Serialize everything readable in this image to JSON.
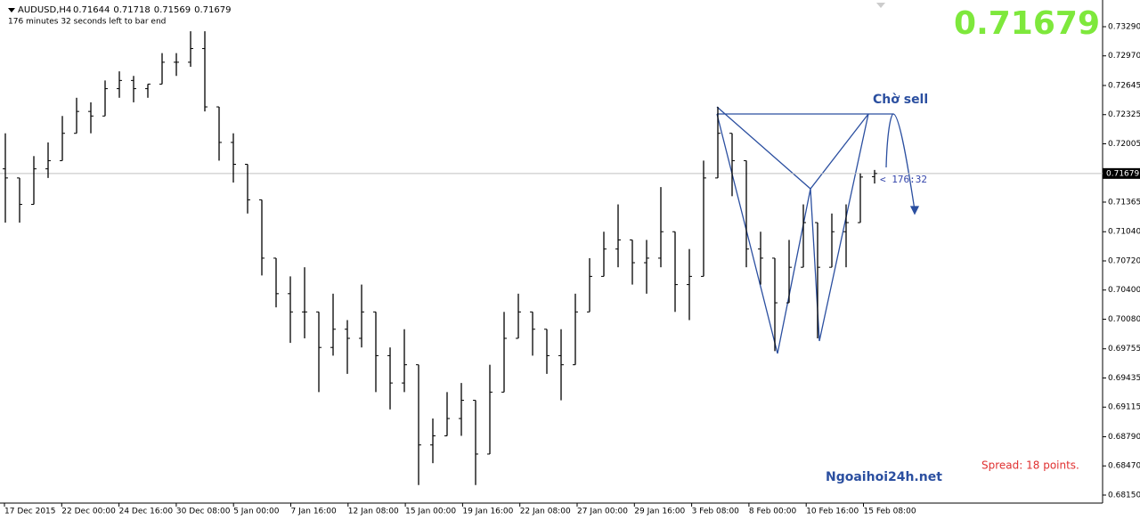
{
  "header": {
    "symbol": "AUDUSD,H4",
    "timer": "176 minutes 32 seconds left to bar end"
  },
  "chart_data": {
    "type": "ohlc",
    "color": "#000000",
    "bars": [
      [
        0.7173,
        0.7212,
        0.7114,
        0.7163
      ],
      [
        0.7163,
        0.7163,
        0.7114,
        0.7134
      ],
      [
        0.7134,
        0.7187,
        0.7134,
        0.7173
      ],
      [
        0.7173,
        0.7202,
        0.7163,
        0.7182
      ],
      [
        0.7182,
        0.7231,
        0.7182,
        0.7212
      ],
      [
        0.7212,
        0.7251,
        0.7212,
        0.7236
      ],
      [
        0.7236,
        0.7246,
        0.7212,
        0.7231
      ],
      [
        0.7231,
        0.727,
        0.7231,
        0.7261
      ],
      [
        0.7261,
        0.728,
        0.7251,
        0.727
      ],
      [
        0.727,
        0.7275,
        0.7246,
        0.7261
      ],
      [
        0.7261,
        0.7266,
        0.7251,
        0.7266
      ],
      [
        0.7266,
        0.73,
        0.7266,
        0.729
      ],
      [
        0.729,
        0.73,
        0.7275,
        0.729
      ],
      [
        0.729,
        0.7324,
        0.7285,
        0.7305
      ],
      [
        0.7305,
        0.7324,
        0.7236,
        0.7241
      ],
      [
        0.7241,
        0.7241,
        0.7182,
        0.7202
      ],
      [
        0.7202,
        0.7212,
        0.7158,
        0.7178
      ],
      [
        0.7178,
        0.7178,
        0.7124,
        0.7139
      ],
      [
        0.7139,
        0.7139,
        0.7056,
        0.7075
      ],
      [
        0.7075,
        0.7075,
        0.7021,
        0.7036
      ],
      [
        0.7036,
        0.7055,
        0.6982,
        0.7016
      ],
      [
        0.7016,
        0.7065,
        0.6987,
        0.7016
      ],
      [
        0.7016,
        0.7016,
        0.6928,
        0.6977
      ],
      [
        0.6977,
        0.7036,
        0.6968,
        0.6997
      ],
      [
        0.6997,
        0.7007,
        0.6948,
        0.6987
      ],
      [
        0.6987,
        0.7046,
        0.6977,
        0.7016
      ],
      [
        0.7016,
        0.7016,
        0.6928,
        0.6968
      ],
      [
        0.6968,
        0.6977,
        0.6909,
        0.6938
      ],
      [
        0.6938,
        0.6997,
        0.6928,
        0.6958
      ],
      [
        0.6958,
        0.6958,
        0.6826,
        0.687
      ],
      [
        0.687,
        0.6899,
        0.685,
        0.688
      ],
      [
        0.688,
        0.6928,
        0.688,
        0.6899
      ],
      [
        0.6899,
        0.6938,
        0.688,
        0.6919
      ],
      [
        0.6919,
        0.6919,
        0.6826,
        0.686
      ],
      [
        0.686,
        0.6958,
        0.686,
        0.6928
      ],
      [
        0.6928,
        0.7016,
        0.6928,
        0.6987
      ],
      [
        0.6987,
        0.7036,
        0.6987,
        0.7016
      ],
      [
        0.7016,
        0.7016,
        0.6968,
        0.6997
      ],
      [
        0.6997,
        0.6997,
        0.6948,
        0.6968
      ],
      [
        0.6968,
        0.6997,
        0.6919,
        0.6958
      ],
      [
        0.6958,
        0.7036,
        0.6958,
        0.7016
      ],
      [
        0.7016,
        0.7075,
        0.7016,
        0.7055
      ],
      [
        0.7055,
        0.7104,
        0.7055,
        0.7085
      ],
      [
        0.7085,
        0.7134,
        0.7065,
        0.7095
      ],
      [
        0.7095,
        0.7095,
        0.7046,
        0.707
      ],
      [
        0.707,
        0.7095,
        0.7036,
        0.7075
      ],
      [
        0.7075,
        0.7153,
        0.7065,
        0.7104
      ],
      [
        0.7104,
        0.7104,
        0.7016,
        0.7046
      ],
      [
        0.7046,
        0.7085,
        0.7007,
        0.7055
      ],
      [
        0.7055,
        0.7182,
        0.7055,
        0.7163
      ],
      [
        0.7163,
        0.7241,
        0.7163,
        0.7212
      ],
      [
        0.7212,
        0.7212,
        0.7143,
        0.7182
      ],
      [
        0.7182,
        0.7182,
        0.7065,
        0.7085
      ],
      [
        0.7085,
        0.7104,
        0.7046,
        0.7075
      ],
      [
        0.7075,
        0.7075,
        0.6973,
        0.7026
      ],
      [
        0.7026,
        0.7095,
        0.7026,
        0.7065
      ],
      [
        0.7065,
        0.7134,
        0.7065,
        0.7114
      ],
      [
        0.7114,
        0.7114,
        0.6987,
        0.7065
      ],
      [
        0.7065,
        0.7124,
        0.7065,
        0.7104
      ],
      [
        0.7104,
        0.7134,
        0.7065,
        0.7114
      ],
      [
        0.7114,
        0.7168,
        0.7114,
        0.7164
      ],
      [
        0.71644,
        0.71718,
        0.71569,
        0.71679
      ]
    ],
    "x_labels": [
      "17 Dec 2015",
      "22 Dec 00:00",
      "24 Dec 16:00",
      "30 Dec 08:00",
      "5 Jan 00:00",
      "7 Jan 16:00",
      "12 Jan 08:00",
      "15 Jan 00:00",
      "19 Jan 16:00",
      "22 Jan 08:00",
      "27 Jan 00:00",
      "29 Jan 16:00",
      "3 Feb 08:00",
      "8 Feb 00:00",
      "10 Feb 16:00",
      "15 Feb 08:00"
    ],
    "ylim": [
      0.68062,
      0.73583
    ],
    "yticks": [
      {
        "value": 0.7329,
        "label": "0.73290"
      },
      {
        "value": 0.7297,
        "label": "0.72970"
      },
      {
        "value": 0.72645,
        "label": "0.72645"
      },
      {
        "value": 0.72325,
        "label": "0.72325"
      },
      {
        "value": 0.72005,
        "label": "0.72005"
      },
      {
        "value": 0.71365,
        "label": "0.71365"
      },
      {
        "value": 0.7104,
        "label": "0.71040"
      },
      {
        "value": 0.7072,
        "label": "0.70720"
      },
      {
        "value": 0.704,
        "label": "0.70400"
      },
      {
        "value": 0.7008,
        "label": "0.70080"
      },
      {
        "value": 0.69755,
        "label": "0.69755"
      },
      {
        "value": 0.69435,
        "label": "0.69435"
      },
      {
        "value": 0.69115,
        "label": "0.69115"
      },
      {
        "value": 0.6879,
        "label": "0.68790"
      },
      {
        "value": 0.6847,
        "label": "0.68470"
      },
      {
        "value": 0.6815,
        "label": "0.68150"
      }
    ],
    "annotations": {
      "wait": "Chờ sell",
      "countdown": "< 176:32",
      "site": "Ngoaihoi24h.net",
      "spread": "Spread: 18 points."
    }
  }
}
